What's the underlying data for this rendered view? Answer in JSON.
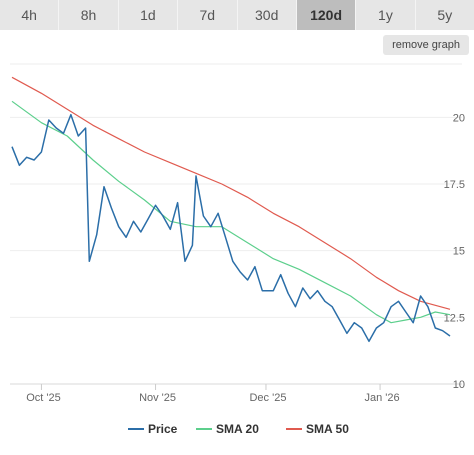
{
  "timeframes": {
    "items": [
      {
        "label": "4h",
        "active": false
      },
      {
        "label": "8h",
        "active": false
      },
      {
        "label": "1d",
        "active": false
      },
      {
        "label": "7d",
        "active": false
      },
      {
        "label": "30d",
        "active": false
      },
      {
        "label": "120d",
        "active": true
      },
      {
        "label": "1y",
        "active": false
      },
      {
        "label": "5y",
        "active": false
      }
    ]
  },
  "remove_graph_label": "remove graph",
  "chart_data": {
    "type": "line",
    "title": "",
    "xlabel": "",
    "ylabel": "",
    "x_range": [
      "2025-09-23",
      "2026-01-20"
    ],
    "ylim": [
      10,
      22
    ],
    "y_ticks": [
      10,
      12.5,
      15,
      17.5,
      20
    ],
    "y_tick_labels": [
      "10",
      "12.5",
      "15",
      "17.5",
      "20"
    ],
    "x_ticks": [
      "2025-10-01",
      "2025-11-01",
      "2025-12-01",
      "2026-01-01"
    ],
    "x_tick_labels": [
      "Oct '25",
      "Nov '25",
      "Dec '25",
      "Jan '26"
    ],
    "grid": true,
    "legend_position": "bottom",
    "series": [
      {
        "name": "Price",
        "color": "#2b6ea8",
        "points": [
          [
            "2025-09-23",
            18.9
          ],
          [
            "2025-09-25",
            18.2
          ],
          [
            "2025-09-27",
            18.5
          ],
          [
            "2025-09-29",
            18.4
          ],
          [
            "2025-10-01",
            18.7
          ],
          [
            "2025-10-03",
            19.9
          ],
          [
            "2025-10-05",
            19.6
          ],
          [
            "2025-10-07",
            19.4
          ],
          [
            "2025-10-09",
            20.1
          ],
          [
            "2025-10-11",
            19.3
          ],
          [
            "2025-10-13",
            19.6
          ],
          [
            "2025-10-14",
            14.6
          ],
          [
            "2025-10-16",
            15.6
          ],
          [
            "2025-10-18",
            17.4
          ],
          [
            "2025-10-20",
            16.6
          ],
          [
            "2025-10-22",
            15.9
          ],
          [
            "2025-10-24",
            15.5
          ],
          [
            "2025-10-26",
            16.1
          ],
          [
            "2025-10-28",
            15.7
          ],
          [
            "2025-10-30",
            16.2
          ],
          [
            "2025-11-01",
            16.7
          ],
          [
            "2025-11-03",
            16.3
          ],
          [
            "2025-11-05",
            15.8
          ],
          [
            "2025-11-07",
            16.8
          ],
          [
            "2025-11-09",
            14.6
          ],
          [
            "2025-11-11",
            15.2
          ],
          [
            "2025-11-12",
            17.8
          ],
          [
            "2025-11-14",
            16.3
          ],
          [
            "2025-11-16",
            15.9
          ],
          [
            "2025-11-18",
            16.4
          ],
          [
            "2025-11-20",
            15.5
          ],
          [
            "2025-11-22",
            14.6
          ],
          [
            "2025-11-24",
            14.2
          ],
          [
            "2025-11-26",
            13.9
          ],
          [
            "2025-11-28",
            14.4
          ],
          [
            "2025-11-30",
            13.5
          ],
          [
            "2025-12-03",
            13.5
          ],
          [
            "2025-12-05",
            14.1
          ],
          [
            "2025-12-07",
            13.4
          ],
          [
            "2025-12-09",
            12.9
          ],
          [
            "2025-12-11",
            13.6
          ],
          [
            "2025-12-13",
            13.2
          ],
          [
            "2025-12-15",
            13.5
          ],
          [
            "2025-12-17",
            13.1
          ],
          [
            "2025-12-19",
            12.9
          ],
          [
            "2025-12-21",
            12.4
          ],
          [
            "2025-12-23",
            11.9
          ],
          [
            "2025-12-25",
            12.3
          ],
          [
            "2025-12-27",
            12.1
          ],
          [
            "2025-12-29",
            11.6
          ],
          [
            "2025-12-31",
            12.1
          ],
          [
            "2026-01-02",
            12.3
          ],
          [
            "2026-01-04",
            12.9
          ],
          [
            "2026-01-06",
            13.1
          ],
          [
            "2026-01-08",
            12.7
          ],
          [
            "2026-01-10",
            12.3
          ],
          [
            "2026-01-12",
            13.3
          ],
          [
            "2026-01-14",
            12.9
          ],
          [
            "2026-01-16",
            12.1
          ],
          [
            "2026-01-18",
            12.0
          ],
          [
            "2026-01-20",
            11.8
          ]
        ]
      },
      {
        "name": "SMA 20",
        "color": "#5ccf8c",
        "points": [
          [
            "2025-09-23",
            20.6
          ],
          [
            "2025-10-01",
            19.8
          ],
          [
            "2025-10-08",
            19.3
          ],
          [
            "2025-10-15",
            18.4
          ],
          [
            "2025-10-22",
            17.6
          ],
          [
            "2025-10-29",
            16.9
          ],
          [
            "2025-11-05",
            16.1
          ],
          [
            "2025-11-12",
            15.9
          ],
          [
            "2025-11-19",
            15.9
          ],
          [
            "2025-11-26",
            15.3
          ],
          [
            "2025-12-03",
            14.7
          ],
          [
            "2025-12-10",
            14.3
          ],
          [
            "2025-12-17",
            13.8
          ],
          [
            "2025-12-24",
            13.3
          ],
          [
            "2025-12-31",
            12.6
          ],
          [
            "2026-01-04",
            12.3
          ],
          [
            "2026-01-08",
            12.4
          ],
          [
            "2026-01-12",
            12.5
          ],
          [
            "2026-01-16",
            12.7
          ],
          [
            "2026-01-20",
            12.6
          ]
        ]
      },
      {
        "name": "SMA 50",
        "color": "#e05a4f",
        "points": [
          [
            "2025-09-23",
            21.5
          ],
          [
            "2025-10-01",
            20.9
          ],
          [
            "2025-10-08",
            20.3
          ],
          [
            "2025-10-15",
            19.7
          ],
          [
            "2025-10-22",
            19.2
          ],
          [
            "2025-10-29",
            18.7
          ],
          [
            "2025-11-05",
            18.3
          ],
          [
            "2025-11-12",
            17.9
          ],
          [
            "2025-11-19",
            17.5
          ],
          [
            "2025-11-26",
            17.0
          ],
          [
            "2025-12-03",
            16.4
          ],
          [
            "2025-12-10",
            15.9
          ],
          [
            "2025-12-17",
            15.3
          ],
          [
            "2025-12-24",
            14.7
          ],
          [
            "2025-12-31",
            14.0
          ],
          [
            "2026-01-06",
            13.5
          ],
          [
            "2026-01-12",
            13.1
          ],
          [
            "2026-01-20",
            12.8
          ]
        ]
      }
    ]
  }
}
